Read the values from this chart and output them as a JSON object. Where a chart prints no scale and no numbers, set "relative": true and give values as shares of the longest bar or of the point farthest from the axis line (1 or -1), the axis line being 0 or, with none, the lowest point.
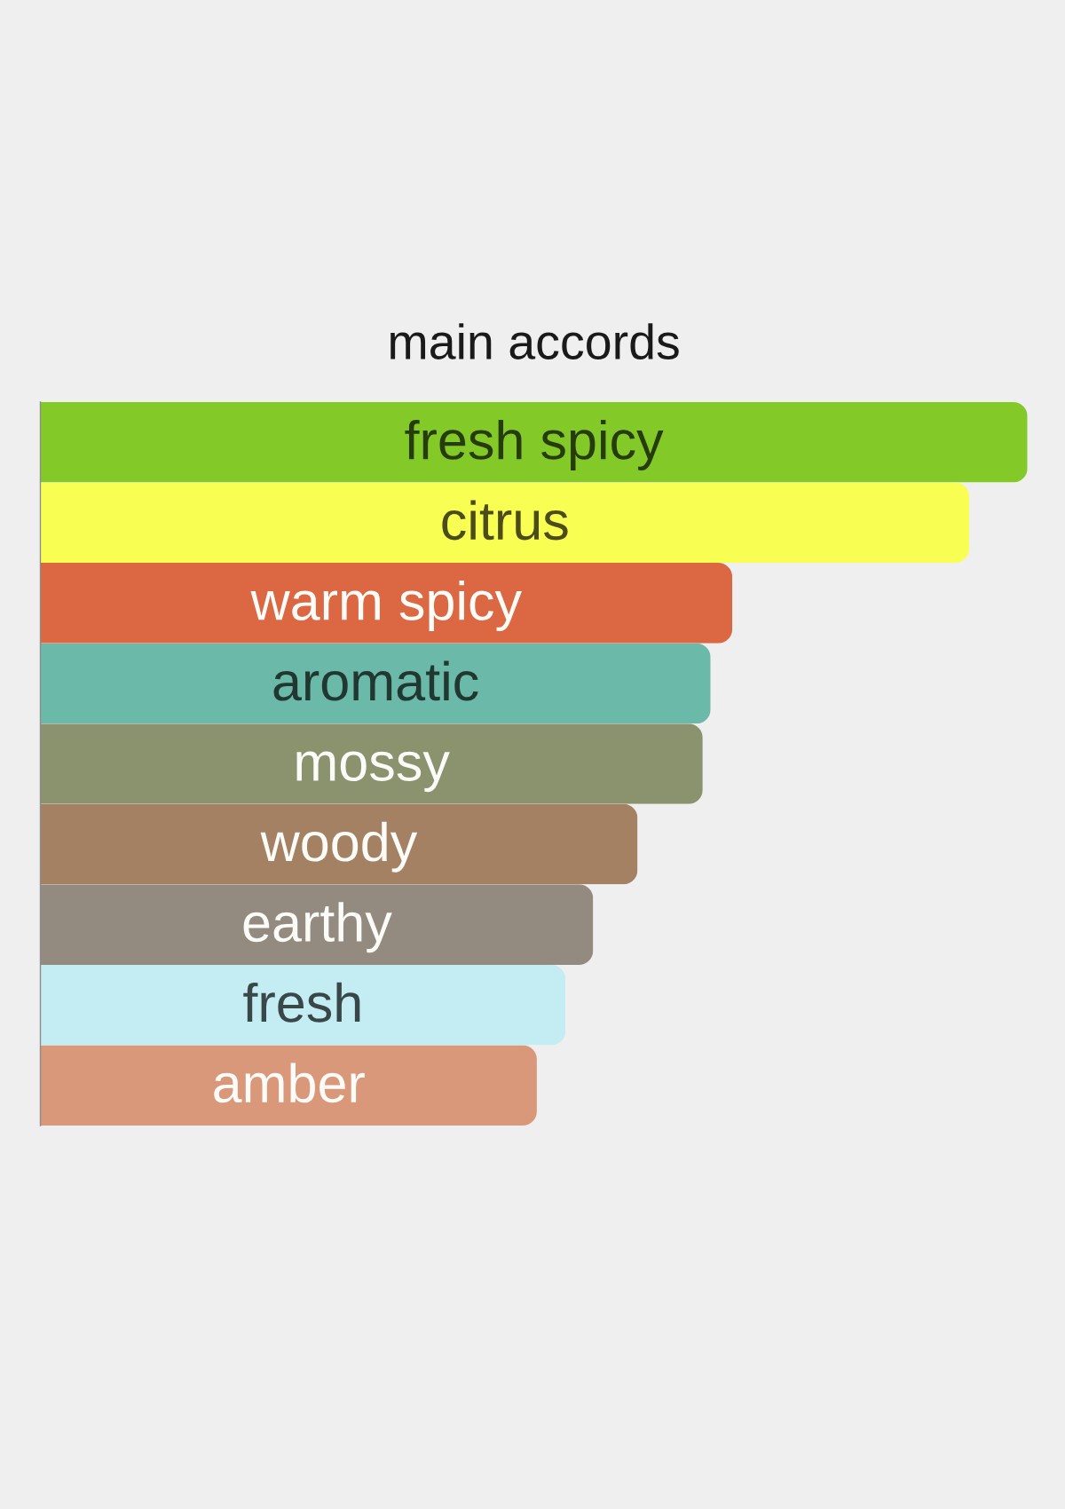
{
  "chart_data": {
    "type": "bar",
    "orientation": "horizontal",
    "relative": true,
    "tick_labels": false,
    "title": "main accords",
    "categories": [
      "fresh spicy",
      "citrus",
      "warm spicy",
      "aromatic",
      "mossy",
      "woody",
      "earthy",
      "fresh",
      "amber"
    ],
    "values": [
      1,
      0.941,
      0.701,
      0.679,
      0.671,
      0.605,
      0.56,
      0.532,
      0.503
    ],
    "colors": [
      "#83c928",
      "#f9ff52",
      "#dc6843",
      "#6bb9a8",
      "#8a936d",
      "#a58163",
      "#948b80",
      "#c3edf2",
      "#d9987a"
    ]
  }
}
